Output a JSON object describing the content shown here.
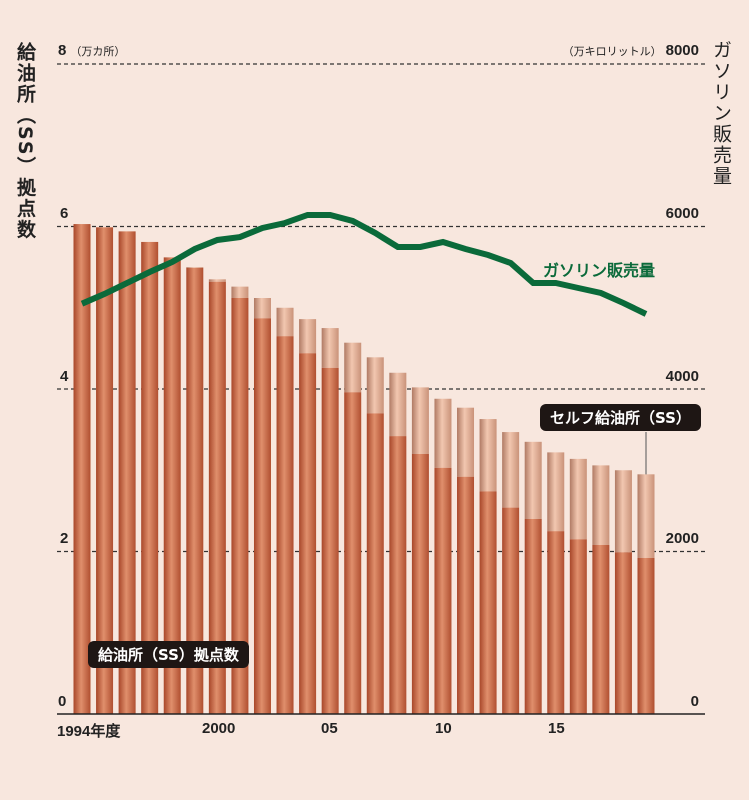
{
  "chart_data": {
    "type": "bar+line",
    "left_axis": {
      "title": "給油所（SS）拠点数",
      "unit": "（万カ所）",
      "ylim": [
        0,
        8
      ],
      "ticks": [
        "0",
        "2",
        "4",
        "6",
        "8"
      ]
    },
    "right_axis": {
      "title": "ガソリン販売量",
      "unit": "（万キロリットル）",
      "ylim": [
        0,
        8000
      ],
      "ticks": [
        "0",
        "2000",
        "4000",
        "6000",
        "8000"
      ]
    },
    "x_tick_labels": [
      {
        "year": 1994,
        "label": "1994年度"
      },
      {
        "year": 2000,
        "label": "2000"
      },
      {
        "year": 2005,
        "label": "05"
      },
      {
        "year": 2010,
        "label": "10"
      },
      {
        "year": 2015,
        "label": "15"
      }
    ],
    "grid": "dashed horizontal",
    "years": [
      1994,
      1995,
      1996,
      1997,
      1998,
      1999,
      2000,
      2001,
      2002,
      2003,
      2004,
      2005,
      2006,
      2007,
      2008,
      2009,
      2010,
      2011,
      2012,
      2013,
      2014,
      2015,
      2016,
      2017,
      2018,
      2019
    ],
    "series": [
      {
        "name": "給油所（SS）拠点数",
        "axis": "left",
        "type": "bar",
        "color": "#c0603a",
        "values": [
          6.03,
          5.99,
          5.94,
          5.81,
          5.62,
          5.5,
          5.35,
          5.26,
          5.12,
          5.0,
          4.86,
          4.75,
          4.57,
          4.39,
          4.2,
          4.02,
          3.88,
          3.77,
          3.63,
          3.47,
          3.35,
          3.22,
          3.14,
          3.06,
          3.0,
          2.95
        ]
      },
      {
        "name": "セルフ給油所（SS）",
        "axis": "left",
        "type": "bar-overlay",
        "color": "#dfa98c",
        "values": [
          0,
          0,
          0,
          0,
          0,
          0.01,
          0.03,
          0.14,
          0.25,
          0.35,
          0.42,
          0.49,
          0.61,
          0.69,
          0.78,
          0.82,
          0.85,
          0.85,
          0.89,
          0.93,
          0.95,
          0.97,
          0.99,
          0.98,
          1.01,
          1.03
        ]
      },
      {
        "name": "ガソリン販売量",
        "axis": "right",
        "type": "line",
        "color": "#0b6a3a",
        "values": [
          5050,
          5170,
          5305,
          5440,
          5563,
          5723,
          5834,
          5870,
          5982,
          6043,
          6142,
          6142,
          6068,
          5920,
          5748,
          5748,
          5809,
          5723,
          5649,
          5551,
          5305,
          5305,
          5243,
          5182,
          5058,
          4923
        ]
      }
    ]
  }
}
